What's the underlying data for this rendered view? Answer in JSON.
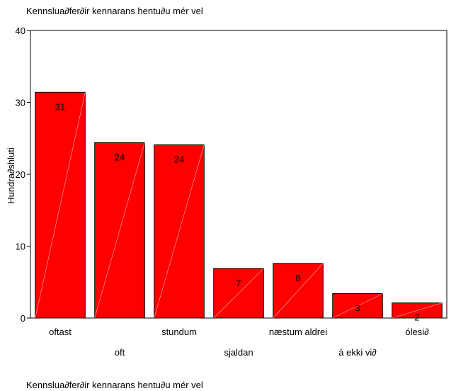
{
  "chart_data": {
    "type": "bar",
    "title": "Kennslua∂fer∂ir kennarans hentu∂u mér vel",
    "footer": "Kennslua∂fer∂ir kennarans hentu∂u mér vel",
    "ylabel": "Hundra∂shluti",
    "xlabel": "",
    "ylim": [
      0,
      40
    ],
    "yticks": [
      0,
      10,
      20,
      30,
      40
    ],
    "categories": [
      "oftast",
      "oft",
      "stundum",
      "sjaldan",
      "næstum aldrei",
      "á ekki vi∂",
      "ólesi∂"
    ],
    "values": [
      31.4,
      24.4,
      24.1,
      6.9,
      7.6,
      3.4,
      2.1
    ],
    "labels": [
      "31",
      "24",
      "24",
      "7",
      "8",
      "3",
      "2"
    ],
    "bar_color": "#ff0000",
    "grid": false
  }
}
